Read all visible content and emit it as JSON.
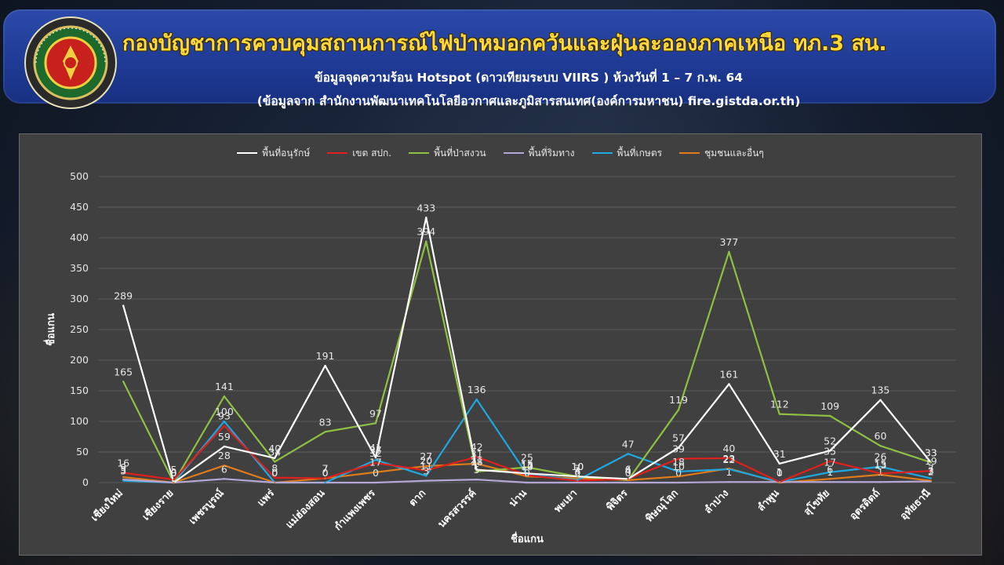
{
  "header": {
    "title": "กองบัญชาการควบคุมสถานการณ์ไฟป่าหมอกควันและฝุ่นละอองภาคเหนือ ทภ.3 สน.",
    "subtitle1": "ข้อมูลจุดความร้อน Hotspot (ดาวเทียมระบบ VIIRS ) ห้วงวันที่ 1 – 7 ก.พ. 64",
    "subtitle2": "(ข้อมูลจาก สำนักงานพัฒนาเทคโนโลยีอวกาศและภูมิสารสนเทศ(องค์การมหาชน) fire.gistda.or.th)",
    "logo_icon": "emblem-logo-icon"
  },
  "chart_data": {
    "type": "line",
    "title": "",
    "xlabel": "ชื่อแกน",
    "ylabel": "ชื่อแกน",
    "ylim": [
      0,
      500
    ],
    "yticks": [
      0,
      50,
      100,
      150,
      200,
      250,
      300,
      350,
      400,
      450,
      500
    ],
    "grid": true,
    "legend_position": "top",
    "categories": [
      "เชียงใหม่",
      "เชียงราย",
      "เพชรบูรณ์",
      "แพร่",
      "แม่ฮ่องสอน",
      "กำแพงเพชร",
      "ตาก",
      "นครสวรรค์",
      "น่าน",
      "พะเยา",
      "พิจิตร",
      "พิษณุโลก",
      "ลำปาง",
      "ลำพูน",
      "สุโขทัย",
      "อุตรดิตถ์",
      "อุทัยธานี"
    ],
    "series": [
      {
        "name": "พื้นที่อนุรักษ์",
        "color": "#ffffff",
        "values": [
          289,
          0,
          59,
          40,
          191,
          41,
          433,
          21,
          15,
          10,
          6,
          57,
          161,
          31,
          52,
          135,
          33
        ]
      },
      {
        "name": "เขต สปก.",
        "color": "#e0201c",
        "values": [
          16,
          5,
          93,
          8,
          7,
          32,
          20,
          42,
          12,
          3,
          6,
          39,
          40,
          1,
          35,
          15,
          19
        ]
      },
      {
        "name": "พื้นที่ป่าสงวน",
        "color": "#8ec043",
        "values": [
          165,
          0,
          141,
          34,
          83,
          97,
          394,
          18,
          25,
          10,
          4,
          119,
          377,
          112,
          109,
          60,
          33
        ]
      },
      {
        "name": "พื้นที่ริมทาง",
        "color": "#b4a7d6",
        "values": [
          5,
          0,
          6,
          0,
          0,
          0,
          3,
          5,
          0,
          0,
          0,
          0,
          1,
          1,
          1,
          1,
          2
        ]
      },
      {
        "name": "พื้นที่เกษตร",
        "color": "#1fa8df",
        "values": [
          3,
          0,
          100,
          0,
          0,
          37,
          11,
          136,
          13,
          4,
          47,
          18,
          22,
          1,
          17,
          26,
          7
        ]
      },
      {
        "name": "ชุมชนและอื่นๆ",
        "color": "#e07b1a",
        "values": [
          9,
          0,
          28,
          0,
          7,
          17,
          27,
          31,
          10,
          7,
          4,
          10,
          23,
          0,
          6,
          13,
          3
        ]
      }
    ]
  }
}
